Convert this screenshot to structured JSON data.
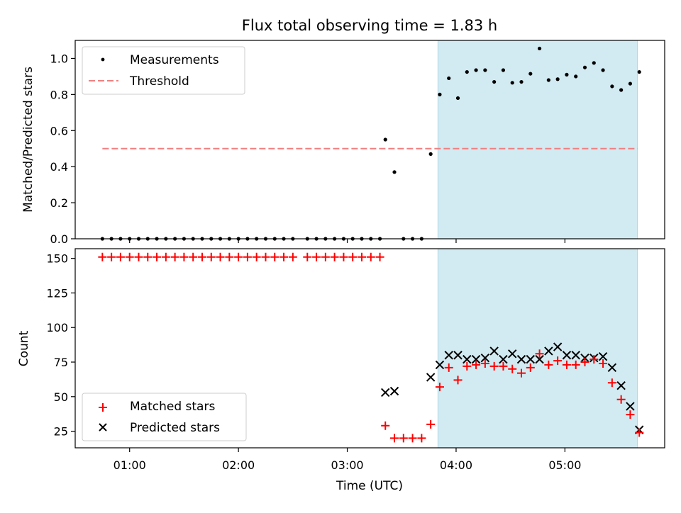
{
  "title": "Flux total observing time = 1.83 h",
  "colors": {
    "shade": "#add8e6",
    "threshold": "#f08080",
    "matched": "#ff0000",
    "predicted": "#000000",
    "measurement": "#000000"
  },
  "chart_data": [
    {
      "type": "scatter",
      "ylabel": "Matched/Predicted stars",
      "ylim": [
        0,
        1.1
      ],
      "xlim": [
        "00:30",
        "05:55"
      ],
      "yticks": [
        "0.0",
        "0.2",
        "0.4",
        "0.6",
        "0.8",
        "1.0"
      ],
      "shaded_region": [
        "03:50",
        "05:40"
      ],
      "legend": {
        "placement": "top-left",
        "measurements": "Measurements",
        "threshold": "Threshold"
      },
      "threshold": {
        "value": 0.5,
        "x_range": [
          "00:45",
          "05:40"
        ]
      },
      "series": [
        {
          "name": "Measurements",
          "points": [
            [
              "00:45",
              0.0
            ],
            [
              "00:50",
              0.0
            ],
            [
              "00:55",
              0.0
            ],
            [
              "01:00",
              0.0
            ],
            [
              "01:05",
              0.0
            ],
            [
              "01:10",
              0.0
            ],
            [
              "01:15",
              0.0
            ],
            [
              "01:20",
              0.0
            ],
            [
              "01:25",
              0.0
            ],
            [
              "01:30",
              0.0
            ],
            [
              "01:35",
              0.0
            ],
            [
              "01:40",
              0.0
            ],
            [
              "01:45",
              0.0
            ],
            [
              "01:50",
              0.0
            ],
            [
              "01:55",
              0.0
            ],
            [
              "02:00",
              0.0
            ],
            [
              "02:05",
              0.0
            ],
            [
              "02:10",
              0.0
            ],
            [
              "02:15",
              0.0
            ],
            [
              "02:20",
              0.0
            ],
            [
              "02:25",
              0.0
            ],
            [
              "02:30",
              0.0
            ],
            [
              "02:38",
              0.0
            ],
            [
              "02:43",
              0.0
            ],
            [
              "02:48",
              0.0
            ],
            [
              "02:53",
              0.0
            ],
            [
              "02:58",
              0.0
            ],
            [
              "03:03",
              0.0
            ],
            [
              "03:08",
              0.0
            ],
            [
              "03:13",
              0.0
            ],
            [
              "03:18",
              0.0
            ],
            [
              "03:21",
              0.55
            ],
            [
              "03:26",
              0.37
            ],
            [
              "03:31",
              0.0
            ],
            [
              "03:36",
              0.0
            ],
            [
              "03:41",
              0.0
            ],
            [
              "03:46",
              0.47
            ],
            [
              "03:51",
              0.8
            ],
            [
              "03:56",
              0.89
            ],
            [
              "04:01",
              0.78
            ],
            [
              "04:06",
              0.925
            ],
            [
              "04:11",
              0.935
            ],
            [
              "04:16",
              0.935
            ],
            [
              "04:21",
              0.87
            ],
            [
              "04:26",
              0.935
            ],
            [
              "04:31",
              0.865
            ],
            [
              "04:36",
              0.87
            ],
            [
              "04:41",
              0.915
            ],
            [
              "04:46",
              1.055
            ],
            [
              "04:51",
              0.88
            ],
            [
              "04:56",
              0.885
            ],
            [
              "05:01",
              0.91
            ],
            [
              "05:06",
              0.9
            ],
            [
              "05:11",
              0.95
            ],
            [
              "05:16",
              0.975
            ],
            [
              "05:21",
              0.935
            ],
            [
              "05:26",
              0.845
            ],
            [
              "05:31",
              0.825
            ],
            [
              "05:36",
              0.86
            ],
            [
              "05:41",
              0.925
            ]
          ]
        }
      ]
    },
    {
      "type": "scatter",
      "ylabel": "Count",
      "xlabel": "Time (UTC)",
      "ylim": [
        13,
        157
      ],
      "xlim": [
        "00:30",
        "05:55"
      ],
      "yticks": [
        "25",
        "50",
        "75",
        "100",
        "125",
        "150"
      ],
      "xticks": [
        "01:00",
        "02:00",
        "03:00",
        "04:00",
        "05:00"
      ],
      "shaded_region": [
        "03:50",
        "05:40"
      ],
      "legend": {
        "placement": "bottom-left",
        "matched": "Matched stars",
        "predicted": "Predicted stars"
      },
      "series": [
        {
          "name": "Matched stars",
          "points": [
            [
              "00:45",
              151
            ],
            [
              "00:50",
              151
            ],
            [
              "00:55",
              151
            ],
            [
              "01:00",
              151
            ],
            [
              "01:05",
              151
            ],
            [
              "01:10",
              151
            ],
            [
              "01:15",
              151
            ],
            [
              "01:20",
              151
            ],
            [
              "01:25",
              151
            ],
            [
              "01:30",
              151
            ],
            [
              "01:35",
              151
            ],
            [
              "01:40",
              151
            ],
            [
              "01:45",
              151
            ],
            [
              "01:50",
              151
            ],
            [
              "01:55",
              151
            ],
            [
              "02:00",
              151
            ],
            [
              "02:05",
              151
            ],
            [
              "02:10",
              151
            ],
            [
              "02:15",
              151
            ],
            [
              "02:20",
              151
            ],
            [
              "02:25",
              151
            ],
            [
              "02:30",
              151
            ],
            [
              "02:38",
              151
            ],
            [
              "02:43",
              151
            ],
            [
              "02:48",
              151
            ],
            [
              "02:53",
              151
            ],
            [
              "02:58",
              151
            ],
            [
              "03:03",
              151
            ],
            [
              "03:08",
              151
            ],
            [
              "03:13",
              151
            ],
            [
              "03:18",
              151
            ],
            [
              "03:21",
              29
            ],
            [
              "03:26",
              20
            ],
            [
              "03:31",
              20
            ],
            [
              "03:36",
              20
            ],
            [
              "03:41",
              20
            ],
            [
              "03:46",
              30
            ],
            [
              "03:51",
              57
            ],
            [
              "03:56",
              71
            ],
            [
              "04:01",
              62
            ],
            [
              "04:06",
              72
            ],
            [
              "04:11",
              73
            ],
            [
              "04:16",
              74
            ],
            [
              "04:21",
              72
            ],
            [
              "04:26",
              72
            ],
            [
              "04:31",
              70
            ],
            [
              "04:36",
              67
            ],
            [
              "04:41",
              71
            ],
            [
              "04:46",
              81
            ],
            [
              "04:51",
              73
            ],
            [
              "04:56",
              76
            ],
            [
              "05:01",
              73
            ],
            [
              "05:06",
              73
            ],
            [
              "05:11",
              75
            ],
            [
              "05:16",
              77
            ],
            [
              "05:21",
              74
            ],
            [
              "05:26",
              60
            ],
            [
              "05:31",
              48
            ],
            [
              "05:36",
              37
            ],
            [
              "05:41",
              24
            ]
          ]
        },
        {
          "name": "Predicted stars",
          "points": [
            [
              "03:21",
              53
            ],
            [
              "03:26",
              54
            ],
            [
              "03:46",
              64
            ],
            [
              "03:51",
              73
            ],
            [
              "03:56",
              80
            ],
            [
              "04:01",
              80
            ],
            [
              "04:06",
              77
            ],
            [
              "04:11",
              77
            ],
            [
              "04:16",
              78
            ],
            [
              "04:21",
              83
            ],
            [
              "04:26",
              77
            ],
            [
              "04:31",
              81
            ],
            [
              "04:36",
              77
            ],
            [
              "04:41",
              77
            ],
            [
              "04:46",
              77
            ],
            [
              "04:51",
              83
            ],
            [
              "04:56",
              86
            ],
            [
              "05:01",
              80
            ],
            [
              "05:06",
              80
            ],
            [
              "05:11",
              78
            ],
            [
              "05:16",
              78
            ],
            [
              "05:21",
              79
            ],
            [
              "05:26",
              71
            ],
            [
              "05:31",
              58
            ],
            [
              "05:36",
              43
            ],
            [
              "05:41",
              26
            ]
          ]
        }
      ]
    }
  ]
}
